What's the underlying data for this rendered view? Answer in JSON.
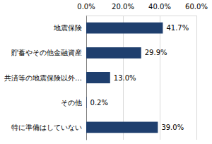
{
  "chart_data": {
    "type": "bar",
    "orientation": "horizontal",
    "categories": [
      "地震保険",
      "貯蓄やその他金融資産",
      "共済等の地震保険以外…",
      "その他",
      "特に準備はしていない"
    ],
    "values": [
      41.7,
      29.9,
      13.0,
      0.2,
      39.0
    ],
    "value_labels": [
      "41.7%",
      "29.9%",
      "13.0%",
      "0.2%",
      "39.0%"
    ],
    "color": "#1f3f6e",
    "xlim": [
      0,
      60
    ],
    "xticks": [
      {
        "value": 0,
        "label": "0.0%"
      },
      {
        "value": 20,
        "label": "20.0%"
      },
      {
        "value": 40,
        "label": "40.0%"
      },
      {
        "value": 60,
        "label": "60.0%"
      }
    ],
    "grid": true,
    "data_labels": true
  }
}
